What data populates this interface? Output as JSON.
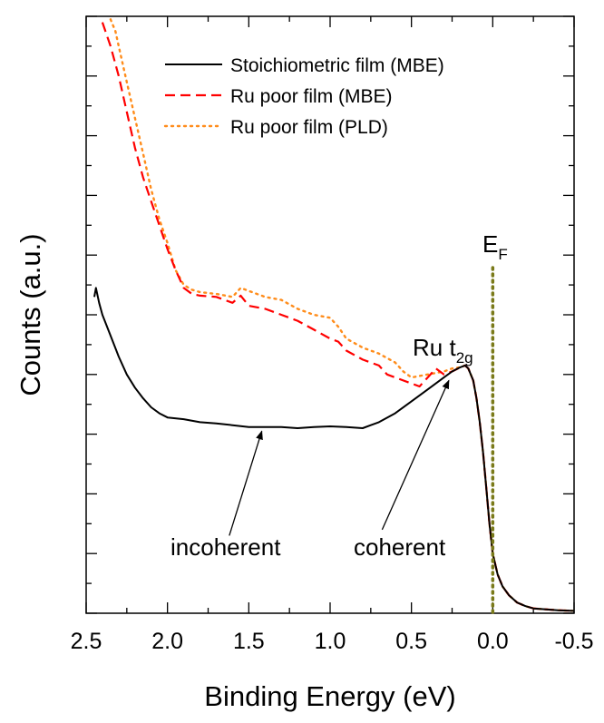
{
  "chart_data": {
    "type": "line",
    "title": "",
    "xlabel": "Binding Energy (eV)",
    "ylabel": "Counts (a.u.)",
    "xlim": [
      2.5,
      -0.5
    ],
    "ylim": [
      0,
      10
    ],
    "x_reversed": true,
    "y_tick_labels_shown": false,
    "grid": false,
    "legend_position": "top-right",
    "x_ticks": [
      2.5,
      2.0,
      1.5,
      1.0,
      0.5,
      0.0,
      -0.5
    ],
    "x_tick_labels": [
      "2.5",
      "2.0",
      "1.5",
      "1.0",
      "0.5",
      "0.0",
      "-0.5"
    ],
    "series": [
      {
        "name": "Stoichiometric film (MBE)",
        "color": "#000000",
        "style": "solid",
        "x": [
          2.45,
          2.44,
          2.42,
          2.4,
          2.35,
          2.3,
          2.25,
          2.2,
          2.15,
          2.1,
          2.05,
          2.0,
          1.9,
          1.8,
          1.7,
          1.6,
          1.5,
          1.4,
          1.3,
          1.2,
          1.1,
          1.0,
          0.9,
          0.8,
          0.75,
          0.7,
          0.6,
          0.5,
          0.4,
          0.3,
          0.25,
          0.2,
          0.17,
          0.15,
          0.12,
          0.1,
          0.08,
          0.06,
          0.04,
          0.02,
          0.0,
          -0.03,
          -0.06,
          -0.1,
          -0.15,
          -0.2,
          -0.25,
          -0.3,
          -0.4,
          -0.5
        ],
        "y": [
          5.3,
          5.45,
          5.2,
          5.0,
          4.65,
          4.3,
          4.0,
          3.78,
          3.6,
          3.45,
          3.35,
          3.28,
          3.25,
          3.2,
          3.18,
          3.15,
          3.12,
          3.12,
          3.12,
          3.1,
          3.12,
          3.13,
          3.12,
          3.1,
          3.15,
          3.2,
          3.35,
          3.55,
          3.75,
          3.95,
          4.05,
          4.12,
          4.15,
          4.1,
          3.9,
          3.6,
          3.2,
          2.7,
          2.1,
          1.5,
          1.0,
          0.65,
          0.45,
          0.3,
          0.18,
          0.12,
          0.08,
          0.07,
          0.05,
          0.04
        ]
      },
      {
        "name": "Ru poor film (MBE)",
        "color": "#ff0000",
        "style": "dashed",
        "x": [
          2.4,
          2.35,
          2.3,
          2.25,
          2.2,
          2.15,
          2.1,
          2.05,
          2.0,
          1.95,
          1.9,
          1.85,
          1.8,
          1.7,
          1.6,
          1.55,
          1.5,
          1.4,
          1.3,
          1.2,
          1.1,
          1.0,
          0.95,
          0.9,
          0.8,
          0.7,
          0.65,
          0.6,
          0.5,
          0.45,
          0.4,
          0.35,
          0.3,
          0.25,
          0.2,
          0.17,
          0.15,
          0.12,
          0.1,
          0.08,
          0.06,
          0.04,
          0.02,
          0.0,
          -0.03,
          -0.06,
          -0.1,
          -0.15,
          -0.2,
          -0.25,
          -0.3,
          -0.4,
          -0.5
        ],
        "y": [
          9.9,
          9.5,
          9.0,
          8.4,
          7.8,
          7.3,
          6.9,
          6.5,
          6.1,
          5.75,
          5.45,
          5.35,
          5.32,
          5.3,
          5.2,
          5.32,
          5.15,
          5.1,
          5.0,
          4.9,
          4.75,
          4.6,
          4.55,
          4.4,
          4.25,
          4.15,
          4.0,
          3.95,
          3.85,
          3.8,
          3.95,
          4.1,
          4.0,
          4.05,
          4.12,
          4.15,
          4.1,
          3.9,
          3.6,
          3.2,
          2.7,
          2.1,
          1.5,
          1.0,
          0.65,
          0.45,
          0.3,
          0.18,
          0.12,
          0.08,
          0.07,
          0.05,
          0.04
        ]
      },
      {
        "name": "Ru poor film (PLD)",
        "color": "#ff8c1a",
        "style": "dotted",
        "x": [
          2.35,
          2.32,
          2.3,
          2.25,
          2.2,
          2.15,
          2.1,
          2.05,
          2.0,
          1.95,
          1.9,
          1.85,
          1.8,
          1.7,
          1.6,
          1.55,
          1.5,
          1.4,
          1.3,
          1.2,
          1.1,
          1.0,
          0.95,
          0.9,
          0.8,
          0.7,
          0.6,
          0.55,
          0.5,
          0.4,
          0.3,
          0.25,
          0.2,
          0.17,
          0.15,
          0.12,
          0.1,
          0.08,
          0.06,
          0.04,
          0.02,
          0.0,
          -0.03,
          -0.06,
          -0.1,
          -0.15,
          -0.2,
          -0.25,
          -0.3,
          -0.4,
          -0.5
        ],
        "y": [
          9.95,
          9.75,
          9.5,
          8.9,
          8.3,
          7.7,
          7.1,
          6.6,
          6.2,
          5.75,
          5.5,
          5.42,
          5.38,
          5.35,
          5.3,
          5.45,
          5.4,
          5.3,
          5.25,
          5.1,
          5.0,
          4.95,
          4.8,
          4.6,
          4.45,
          4.35,
          4.2,
          4.05,
          3.95,
          4.0,
          4.05,
          4.1,
          4.12,
          4.15,
          4.1,
          3.9,
          3.6,
          3.2,
          2.7,
          2.1,
          1.5,
          1.0,
          0.65,
          0.45,
          0.3,
          0.18,
          0.12,
          0.08,
          0.07,
          0.05,
          0.04
        ]
      }
    ],
    "vline": {
      "x": 0.0,
      "color": "#7a7a1a",
      "style": "dotted"
    },
    "annotations": {
      "ef_main": "E",
      "ef_sub": "F",
      "peak_main": "Ru t",
      "peak_sub": "2g",
      "incoherent": "incoherent",
      "coherent": "coherent"
    },
    "arrows": [
      {
        "label": "incoherent",
        "from": [
          1.62,
          1.3
        ],
        "to": [
          1.42,
          3.05
        ]
      },
      {
        "label": "coherent",
        "from": [
          0.68,
          1.4
        ],
        "to": [
          0.27,
          3.9
        ]
      }
    ]
  }
}
